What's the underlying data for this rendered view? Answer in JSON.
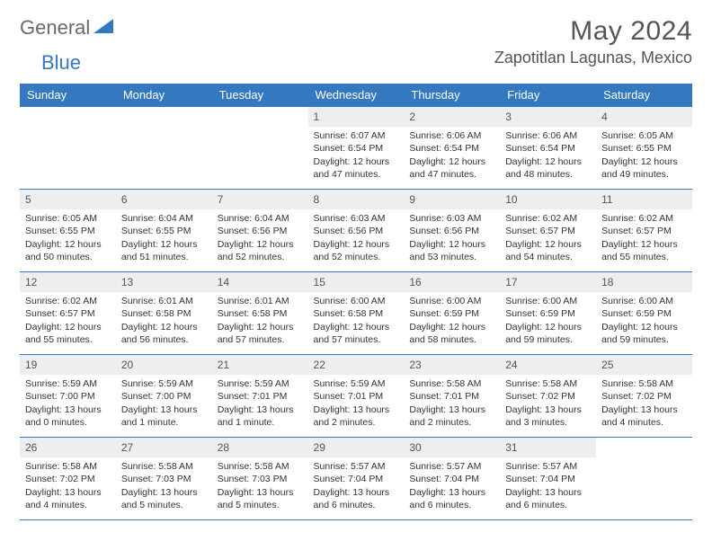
{
  "logo": {
    "text1": "General",
    "text2": "Blue"
  },
  "title": "May 2024",
  "location": "Zapotitlan Lagunas, Mexico",
  "weekdays": [
    "Sunday",
    "Monday",
    "Tuesday",
    "Wednesday",
    "Thursday",
    "Friday",
    "Saturday"
  ],
  "colors": {
    "header_bg": "#3478c0",
    "daynum_bg": "#eceeef",
    "text": "#555555"
  },
  "weeks": [
    [
      null,
      null,
      null,
      {
        "n": "1",
        "sr": "Sunrise: 6:07 AM",
        "ss": "Sunset: 6:54 PM",
        "d1": "Daylight: 12 hours",
        "d2": "and 47 minutes."
      },
      {
        "n": "2",
        "sr": "Sunrise: 6:06 AM",
        "ss": "Sunset: 6:54 PM",
        "d1": "Daylight: 12 hours",
        "d2": "and 47 minutes."
      },
      {
        "n": "3",
        "sr": "Sunrise: 6:06 AM",
        "ss": "Sunset: 6:54 PM",
        "d1": "Daylight: 12 hours",
        "d2": "and 48 minutes."
      },
      {
        "n": "4",
        "sr": "Sunrise: 6:05 AM",
        "ss": "Sunset: 6:55 PM",
        "d1": "Daylight: 12 hours",
        "d2": "and 49 minutes."
      }
    ],
    [
      {
        "n": "5",
        "sr": "Sunrise: 6:05 AM",
        "ss": "Sunset: 6:55 PM",
        "d1": "Daylight: 12 hours",
        "d2": "and 50 minutes."
      },
      {
        "n": "6",
        "sr": "Sunrise: 6:04 AM",
        "ss": "Sunset: 6:55 PM",
        "d1": "Daylight: 12 hours",
        "d2": "and 51 minutes."
      },
      {
        "n": "7",
        "sr": "Sunrise: 6:04 AM",
        "ss": "Sunset: 6:56 PM",
        "d1": "Daylight: 12 hours",
        "d2": "and 52 minutes."
      },
      {
        "n": "8",
        "sr": "Sunrise: 6:03 AM",
        "ss": "Sunset: 6:56 PM",
        "d1": "Daylight: 12 hours",
        "d2": "and 52 minutes."
      },
      {
        "n": "9",
        "sr": "Sunrise: 6:03 AM",
        "ss": "Sunset: 6:56 PM",
        "d1": "Daylight: 12 hours",
        "d2": "and 53 minutes."
      },
      {
        "n": "10",
        "sr": "Sunrise: 6:02 AM",
        "ss": "Sunset: 6:57 PM",
        "d1": "Daylight: 12 hours",
        "d2": "and 54 minutes."
      },
      {
        "n": "11",
        "sr": "Sunrise: 6:02 AM",
        "ss": "Sunset: 6:57 PM",
        "d1": "Daylight: 12 hours",
        "d2": "and 55 minutes."
      }
    ],
    [
      {
        "n": "12",
        "sr": "Sunrise: 6:02 AM",
        "ss": "Sunset: 6:57 PM",
        "d1": "Daylight: 12 hours",
        "d2": "and 55 minutes."
      },
      {
        "n": "13",
        "sr": "Sunrise: 6:01 AM",
        "ss": "Sunset: 6:58 PM",
        "d1": "Daylight: 12 hours",
        "d2": "and 56 minutes."
      },
      {
        "n": "14",
        "sr": "Sunrise: 6:01 AM",
        "ss": "Sunset: 6:58 PM",
        "d1": "Daylight: 12 hours",
        "d2": "and 57 minutes."
      },
      {
        "n": "15",
        "sr": "Sunrise: 6:00 AM",
        "ss": "Sunset: 6:58 PM",
        "d1": "Daylight: 12 hours",
        "d2": "and 57 minutes."
      },
      {
        "n": "16",
        "sr": "Sunrise: 6:00 AM",
        "ss": "Sunset: 6:59 PM",
        "d1": "Daylight: 12 hours",
        "d2": "and 58 minutes."
      },
      {
        "n": "17",
        "sr": "Sunrise: 6:00 AM",
        "ss": "Sunset: 6:59 PM",
        "d1": "Daylight: 12 hours",
        "d2": "and 59 minutes."
      },
      {
        "n": "18",
        "sr": "Sunrise: 6:00 AM",
        "ss": "Sunset: 6:59 PM",
        "d1": "Daylight: 12 hours",
        "d2": "and 59 minutes."
      }
    ],
    [
      {
        "n": "19",
        "sr": "Sunrise: 5:59 AM",
        "ss": "Sunset: 7:00 PM",
        "d1": "Daylight: 13 hours",
        "d2": "and 0 minutes."
      },
      {
        "n": "20",
        "sr": "Sunrise: 5:59 AM",
        "ss": "Sunset: 7:00 PM",
        "d1": "Daylight: 13 hours",
        "d2": "and 1 minute."
      },
      {
        "n": "21",
        "sr": "Sunrise: 5:59 AM",
        "ss": "Sunset: 7:01 PM",
        "d1": "Daylight: 13 hours",
        "d2": "and 1 minute."
      },
      {
        "n": "22",
        "sr": "Sunrise: 5:59 AM",
        "ss": "Sunset: 7:01 PM",
        "d1": "Daylight: 13 hours",
        "d2": "and 2 minutes."
      },
      {
        "n": "23",
        "sr": "Sunrise: 5:58 AM",
        "ss": "Sunset: 7:01 PM",
        "d1": "Daylight: 13 hours",
        "d2": "and 2 minutes."
      },
      {
        "n": "24",
        "sr": "Sunrise: 5:58 AM",
        "ss": "Sunset: 7:02 PM",
        "d1": "Daylight: 13 hours",
        "d2": "and 3 minutes."
      },
      {
        "n": "25",
        "sr": "Sunrise: 5:58 AM",
        "ss": "Sunset: 7:02 PM",
        "d1": "Daylight: 13 hours",
        "d2": "and 4 minutes."
      }
    ],
    [
      {
        "n": "26",
        "sr": "Sunrise: 5:58 AM",
        "ss": "Sunset: 7:02 PM",
        "d1": "Daylight: 13 hours",
        "d2": "and 4 minutes."
      },
      {
        "n": "27",
        "sr": "Sunrise: 5:58 AM",
        "ss": "Sunset: 7:03 PM",
        "d1": "Daylight: 13 hours",
        "d2": "and 5 minutes."
      },
      {
        "n": "28",
        "sr": "Sunrise: 5:58 AM",
        "ss": "Sunset: 7:03 PM",
        "d1": "Daylight: 13 hours",
        "d2": "and 5 minutes."
      },
      {
        "n": "29",
        "sr": "Sunrise: 5:57 AM",
        "ss": "Sunset: 7:04 PM",
        "d1": "Daylight: 13 hours",
        "d2": "and 6 minutes."
      },
      {
        "n": "30",
        "sr": "Sunrise: 5:57 AM",
        "ss": "Sunset: 7:04 PM",
        "d1": "Daylight: 13 hours",
        "d2": "and 6 minutes."
      },
      {
        "n": "31",
        "sr": "Sunrise: 5:57 AM",
        "ss": "Sunset: 7:04 PM",
        "d1": "Daylight: 13 hours",
        "d2": "and 6 minutes."
      },
      null
    ]
  ]
}
